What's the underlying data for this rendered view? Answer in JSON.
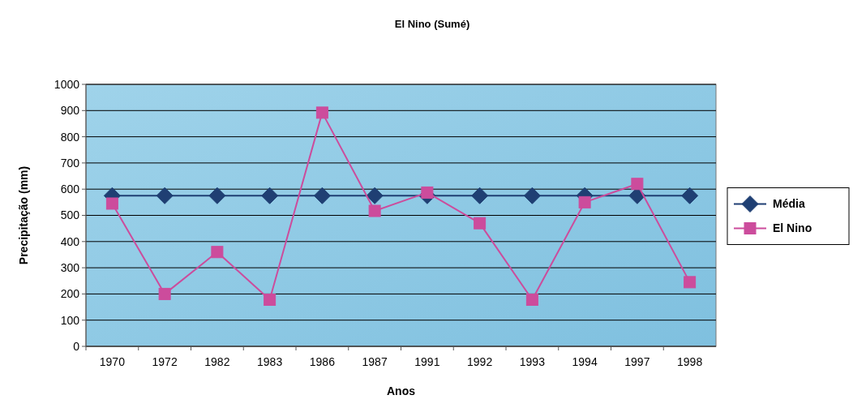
{
  "chart_data": {
    "type": "line",
    "title": "El Nino (Sumé)",
    "xlabel": "Anos",
    "ylabel": "Precipitação (mm)",
    "categories": [
      "1970",
      "1972",
      "1982",
      "1983",
      "1986",
      "1987",
      "1991",
      "1992",
      "1993",
      "1994",
      "1997",
      "1998"
    ],
    "series": [
      {
        "name": "Média",
        "color": "#1f3f73",
        "marker": "diamond",
        "values": [
          575,
          575,
          575,
          575,
          575,
          575,
          575,
          575,
          575,
          575,
          575,
          575
        ]
      },
      {
        "name": "El Nino",
        "color": "#cc4c9c",
        "marker": "square",
        "values": [
          545,
          200,
          360,
          178,
          892,
          517,
          587,
          470,
          178,
          550,
          620,
          245
        ]
      }
    ],
    "ylim": [
      0,
      1000
    ],
    "yticks": [
      0,
      100,
      200,
      300,
      400,
      500,
      600,
      700,
      800,
      900,
      1000
    ],
    "grid": "y",
    "legend": "right"
  }
}
